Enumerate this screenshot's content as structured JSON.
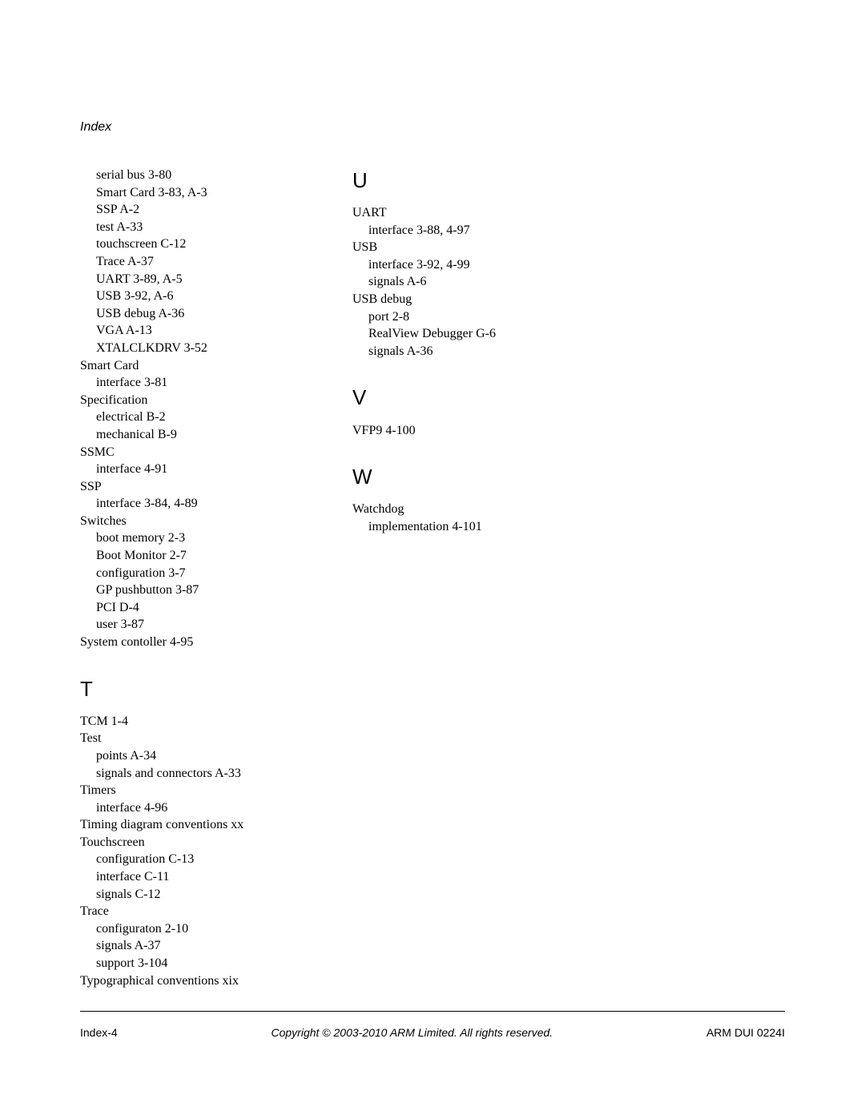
{
  "header": {
    "label": "Index"
  },
  "col1": {
    "lines": [
      {
        "cls": "entry sub",
        "t": "serial bus   3-80"
      },
      {
        "cls": "entry sub",
        "t": "Smart Card   3-83, A-3"
      },
      {
        "cls": "entry sub",
        "t": "SSP   A-2"
      },
      {
        "cls": "entry sub",
        "t": "test   A-33"
      },
      {
        "cls": "entry sub",
        "t": "touchscreen   C-12"
      },
      {
        "cls": "entry sub",
        "t": "Trace   A-37"
      },
      {
        "cls": "entry sub",
        "t": "UART   3-89, A-5"
      },
      {
        "cls": "entry sub",
        "t": "USB   3-92, A-6"
      },
      {
        "cls": "entry sub",
        "t": "USB debug   A-36"
      },
      {
        "cls": "entry sub",
        "t": "VGA   A-13"
      },
      {
        "cls": "entry sub",
        "t": "XTALCLKDRV   3-52"
      },
      {
        "cls": "entry",
        "t": "Smart Card"
      },
      {
        "cls": "entry sub",
        "t": "interface   3-81"
      },
      {
        "cls": "entry",
        "t": "Specification"
      },
      {
        "cls": "entry sub",
        "t": "electrical   B-2"
      },
      {
        "cls": "entry sub",
        "t": "mechanical   B-9"
      },
      {
        "cls": "entry",
        "t": "SSMC"
      },
      {
        "cls": "entry sub",
        "t": "interface   4-91"
      },
      {
        "cls": "entry",
        "t": "SSP"
      },
      {
        "cls": "entry sub",
        "t": "interface   3-84, 4-89"
      },
      {
        "cls": "entry",
        "t": "Switches"
      },
      {
        "cls": "entry sub",
        "t": "boot memory   2-3"
      },
      {
        "cls": "entry sub",
        "t": "Boot Monitor   2-7"
      },
      {
        "cls": "entry sub",
        "t": "configuration   3-7"
      },
      {
        "cls": "entry sub",
        "t": "GP pushbutton   3-87"
      },
      {
        "cls": "entry sub",
        "t": "PCI   D-4"
      },
      {
        "cls": "entry sub",
        "t": "user   3-87"
      },
      {
        "cls": "entry",
        "t": "System contoller   4-95"
      }
    ],
    "section_t": "T",
    "t_lines": [
      {
        "cls": "entry",
        "t": "TCM   1-4"
      },
      {
        "cls": "entry",
        "t": "Test"
      },
      {
        "cls": "entry sub",
        "t": "points   A-34"
      },
      {
        "cls": "entry sub",
        "t": "signals and connectors   A-33"
      },
      {
        "cls": "entry",
        "t": "Timers"
      },
      {
        "cls": "entry sub",
        "t": "interface   4-96"
      },
      {
        "cls": "entry",
        "t": "Timing diagram conventions   xx"
      },
      {
        "cls": "entry",
        "t": "Touchscreen"
      },
      {
        "cls": "entry sub",
        "t": "configuration   C-13"
      },
      {
        "cls": "entry sub",
        "t": "interface   C-11"
      },
      {
        "cls": "entry sub",
        "t": "signals   C-12"
      },
      {
        "cls": "entry",
        "t": "Trace"
      },
      {
        "cls": "entry sub",
        "t": "configuraton   2-10"
      },
      {
        "cls": "entry sub",
        "t": "signals   A-37"
      },
      {
        "cls": "entry sub",
        "t": "support   3-104"
      },
      {
        "cls": "entry",
        "t": "Typographical conventions   xix"
      }
    ]
  },
  "col2": {
    "section_u": "U",
    "u_lines": [
      {
        "cls": "entry",
        "t": "UART"
      },
      {
        "cls": "entry sub",
        "t": "interface   3-88, 4-97"
      },
      {
        "cls": "entry",
        "t": "USB"
      },
      {
        "cls": "entry sub",
        "t": "interface   3-92, 4-99"
      },
      {
        "cls": "entry sub",
        "t": "signals   A-6"
      },
      {
        "cls": "entry",
        "t": "USB debug"
      },
      {
        "cls": "entry sub",
        "t": "port   2-8"
      },
      {
        "cls": "entry sub",
        "t": "RealView Debugger   G-6"
      },
      {
        "cls": "entry sub",
        "t": "signals   A-36"
      }
    ],
    "section_v": "V",
    "v_lines": [
      {
        "cls": "entry",
        "t": "VFP9   4-100"
      }
    ],
    "section_w": "W",
    "w_lines": [
      {
        "cls": "entry",
        "t": "Watchdog"
      },
      {
        "cls": "entry sub",
        "t": "implementation   4-101"
      }
    ]
  },
  "footer": {
    "left": "Index-4",
    "center": "Copyright © 2003-2010 ARM Limited. All rights reserved.",
    "right": "ARM DUI 0224I"
  }
}
